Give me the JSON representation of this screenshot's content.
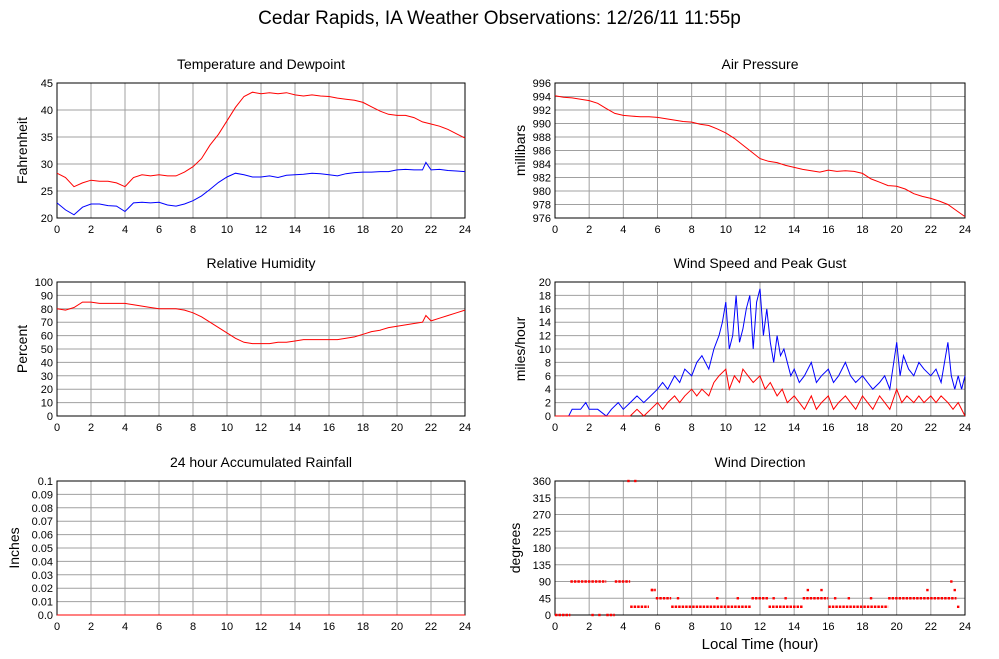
{
  "title": "Cedar Rapids, IA Weather Observations: 12/26/11 11:55p",
  "xlabel": "Local Time (hour)",
  "colors": {
    "red": "#ff0000",
    "blue": "#0000ff",
    "grid": "#a0a0a0"
  },
  "chart_data": [
    {
      "type": "line",
      "title": "Temperature and Dewpoint",
      "ylabel": "Fahrenheit",
      "xlim": [
        0,
        24
      ],
      "ylim": [
        20,
        45
      ],
      "xticks": [
        0,
        2,
        4,
        6,
        8,
        10,
        12,
        14,
        16,
        18,
        20,
        22,
        24
      ],
      "yticks": [
        20,
        25,
        30,
        35,
        40,
        45
      ],
      "grid": true,
      "series": [
        {
          "color": "#ff0000",
          "x": [
            0,
            0.5,
            1.0,
            1.5,
            2.0,
            2.5,
            3.0,
            3.5,
            4.0,
            4.5,
            5.0,
            5.5,
            6.0,
            6.5,
            7.0,
            7.5,
            8.0,
            8.5,
            9.0,
            9.5,
            10.0,
            10.5,
            11.0,
            11.5,
            12.0,
            12.5,
            13.0,
            13.5,
            14.0,
            14.5,
            15.0,
            15.5,
            16.0,
            16.5,
            17.0,
            17.5,
            18.0,
            18.5,
            19.0,
            19.5,
            20.0,
            20.5,
            21.0,
            21.5,
            22.0,
            22.5,
            23.0,
            23.5,
            24.0
          ],
          "y": [
            28.3,
            27.5,
            25.8,
            26.5,
            27.0,
            26.8,
            26.8,
            26.5,
            25.8,
            27.5,
            28.0,
            27.8,
            28.0,
            27.8,
            27.8,
            28.5,
            29.5,
            31.0,
            33.5,
            35.5,
            38.0,
            40.5,
            42.5,
            43.3,
            43.0,
            43.2,
            43.0,
            43.2,
            42.8,
            42.6,
            42.8,
            42.6,
            42.5,
            42.2,
            42.0,
            41.8,
            41.4,
            40.6,
            39.8,
            39.2,
            39.0,
            39.0,
            38.6,
            37.8,
            37.4,
            37.0,
            36.4,
            35.6,
            34.8
          ]
        },
        {
          "color": "#0000ff",
          "x": [
            0,
            0.5,
            1.0,
            1.5,
            2.0,
            2.5,
            3.0,
            3.5,
            4.0,
            4.5,
            5.0,
            5.5,
            6.0,
            6.5,
            7.0,
            7.5,
            8.0,
            8.5,
            9.0,
            9.5,
            10.0,
            10.5,
            11.0,
            11.5,
            12.0,
            12.5,
            13.0,
            13.5,
            14.0,
            14.5,
            15.0,
            15.5,
            16.0,
            16.5,
            17.0,
            17.5,
            18.0,
            18.5,
            19.0,
            19.5,
            20.0,
            20.5,
            21.0,
            21.5,
            21.7,
            22.0,
            22.5,
            23.0,
            23.5,
            24.0
          ],
          "y": [
            22.8,
            21.5,
            20.6,
            22.0,
            22.6,
            22.6,
            22.3,
            22.2,
            21.2,
            22.8,
            22.9,
            22.8,
            22.9,
            22.4,
            22.2,
            22.6,
            23.2,
            24.1,
            25.3,
            26.6,
            27.6,
            28.3,
            28.0,
            27.6,
            27.6,
            27.8,
            27.5,
            27.9,
            28.0,
            28.1,
            28.3,
            28.2,
            28.0,
            27.8,
            28.2,
            28.4,
            28.5,
            28.5,
            28.6,
            28.6,
            28.9,
            29.0,
            28.9,
            28.9,
            30.3,
            28.9,
            29.0,
            28.8,
            28.7,
            28.6
          ]
        }
      ]
    },
    {
      "type": "line",
      "title": "Air Pressure",
      "ylabel": "millibars",
      "xlim": [
        0,
        24
      ],
      "ylim": [
        976,
        996
      ],
      "xticks": [
        0,
        2,
        4,
        6,
        8,
        10,
        12,
        14,
        16,
        18,
        20,
        22,
        24
      ],
      "yticks": [
        976,
        978,
        980,
        982,
        984,
        986,
        988,
        990,
        992,
        994,
        996
      ],
      "grid": true,
      "series": [
        {
          "color": "#ff0000",
          "x": [
            0,
            0.5,
            1.0,
            1.5,
            2.0,
            2.5,
            3.0,
            3.5,
            4.0,
            4.5,
            5.0,
            5.5,
            6.0,
            6.5,
            7.0,
            7.5,
            8.0,
            8.5,
            9.0,
            9.5,
            10.0,
            10.5,
            11.0,
            11.5,
            12.0,
            12.5,
            13.0,
            13.5,
            14.0,
            14.5,
            15.0,
            15.5,
            16.0,
            16.5,
            17.0,
            17.5,
            18.0,
            18.5,
            19.0,
            19.5,
            20.0,
            20.5,
            21.0,
            21.5,
            22.0,
            22.5,
            23.0,
            23.5,
            24.0
          ],
          "y": [
            994.1,
            993.9,
            993.8,
            993.6,
            993.4,
            993.0,
            992.2,
            991.5,
            991.2,
            991.1,
            991.0,
            991.0,
            990.9,
            990.7,
            990.5,
            990.3,
            990.2,
            989.9,
            989.7,
            989.2,
            988.6,
            987.8,
            986.8,
            985.8,
            984.8,
            984.4,
            984.2,
            983.8,
            983.5,
            983.2,
            983.0,
            982.8,
            983.1,
            982.9,
            983.0,
            982.9,
            982.6,
            981.8,
            981.3,
            980.8,
            980.7,
            980.3,
            979.6,
            979.2,
            978.9,
            978.5,
            978.0,
            977.1,
            976.2
          ]
        }
      ]
    },
    {
      "type": "line",
      "title": "Relative Humidity",
      "ylabel": "Percent",
      "xlim": [
        0,
        24
      ],
      "ylim": [
        0,
        100
      ],
      "xticks": [
        0,
        2,
        4,
        6,
        8,
        10,
        12,
        14,
        16,
        18,
        20,
        22,
        24
      ],
      "yticks": [
        0,
        10,
        20,
        30,
        40,
        50,
        60,
        70,
        80,
        90,
        100
      ],
      "grid": true,
      "series": [
        {
          "color": "#ff0000",
          "x": [
            0,
            0.5,
            1.0,
            1.5,
            2.0,
            2.5,
            3.0,
            3.5,
            4.0,
            4.5,
            5.0,
            5.5,
            6.0,
            6.5,
            7.0,
            7.5,
            8.0,
            8.5,
            9.0,
            9.5,
            10.0,
            10.5,
            11.0,
            11.5,
            12.0,
            12.5,
            13.0,
            13.5,
            14.0,
            14.5,
            15.0,
            15.5,
            16.0,
            16.5,
            17.0,
            17.5,
            18.0,
            18.5,
            19.0,
            19.5,
            20.0,
            20.5,
            21.0,
            21.5,
            21.7,
            22.0,
            22.5,
            23.0,
            23.5,
            24.0
          ],
          "y": [
            80,
            79,
            81,
            85,
            85,
            84,
            84,
            84,
            84,
            83,
            82,
            81,
            80,
            80,
            80,
            79,
            77,
            74,
            70,
            66,
            62,
            58,
            55,
            54,
            54,
            54,
            55,
            55,
            56,
            57,
            57,
            57,
            57,
            57,
            58,
            59,
            61,
            63,
            64,
            66,
            67,
            68,
            69,
            70,
            75,
            71,
            73,
            75,
            77,
            79
          ]
        }
      ]
    },
    {
      "type": "line",
      "title": "Wind Speed and Peak Gust",
      "ylabel": "miles/hour",
      "xlim": [
        0,
        24
      ],
      "ylim": [
        0,
        20
      ],
      "xticks": [
        0,
        2,
        4,
        6,
        8,
        10,
        12,
        14,
        16,
        18,
        20,
        22,
        24
      ],
      "yticks": [
        0,
        2,
        4,
        6,
        8,
        10,
        12,
        14,
        16,
        18,
        20
      ],
      "grid": true,
      "series": [
        {
          "color": "#0000ff",
          "x": [
            0,
            0.5,
            0.8,
            1.0,
            1.5,
            1.8,
            2.0,
            2.5,
            3.0,
            3.3,
            3.7,
            4.0,
            4.4,
            4.8,
            5.2,
            5.6,
            6.0,
            6.3,
            6.6,
            7.0,
            7.3,
            7.6,
            8.0,
            8.3,
            8.6,
            9.0,
            9.3,
            9.6,
            9.8,
            10.0,
            10.2,
            10.4,
            10.6,
            10.8,
            11.0,
            11.2,
            11.4,
            11.6,
            11.8,
            12.0,
            12.2,
            12.4,
            12.6,
            12.8,
            13.0,
            13.2,
            13.4,
            13.6,
            13.8,
            14.0,
            14.3,
            14.6,
            15.0,
            15.3,
            15.6,
            16.0,
            16.3,
            16.6,
            17.0,
            17.3,
            17.6,
            18.0,
            18.3,
            18.6,
            19.0,
            19.3,
            19.6,
            20.0,
            20.2,
            20.4,
            20.7,
            21.0,
            21.3,
            21.6,
            22.0,
            22.3,
            22.6,
            23.0,
            23.2,
            23.4,
            23.6,
            23.8,
            24.0
          ],
          "y": [
            0,
            0,
            0,
            1,
            1,
            2,
            1,
            1,
            0,
            1,
            2,
            1,
            2,
            3,
            2,
            3,
            4,
            5,
            4,
            6,
            5,
            7,
            6,
            8,
            9,
            7,
            10,
            12,
            14,
            17,
            10,
            12,
            18,
            11,
            13,
            16,
            18,
            10,
            17,
            19,
            12,
            16,
            11,
            8,
            12,
            9,
            10,
            8,
            6,
            7,
            5,
            6,
            8,
            5,
            6,
            7,
            5,
            6,
            8,
            6,
            5,
            6,
            5,
            4,
            5,
            6,
            4,
            11,
            6,
            9,
            7,
            6,
            8,
            7,
            6,
            7,
            5,
            11,
            6,
            4,
            6,
            4,
            6
          ]
        },
        {
          "color": "#ff0000",
          "x": [
            0,
            0.5,
            1.0,
            1.5,
            2.0,
            2.5,
            3.0,
            3.5,
            4.0,
            4.4,
            4.8,
            5.2,
            5.6,
            6.0,
            6.3,
            6.6,
            7.0,
            7.3,
            7.6,
            8.0,
            8.3,
            8.6,
            9.0,
            9.3,
            9.6,
            10.0,
            10.2,
            10.5,
            10.8,
            11.0,
            11.3,
            11.6,
            12.0,
            12.3,
            12.6,
            13.0,
            13.3,
            13.6,
            14.0,
            14.3,
            14.6,
            15.0,
            15.3,
            15.6,
            16.0,
            16.3,
            16.6,
            17.0,
            17.3,
            17.6,
            18.0,
            18.3,
            18.6,
            19.0,
            19.3,
            19.6,
            20.0,
            20.3,
            20.6,
            21.0,
            21.3,
            21.6,
            22.0,
            22.3,
            22.6,
            23.0,
            23.3,
            23.6,
            24.0
          ],
          "y": [
            0,
            0,
            0,
            0,
            0,
            0,
            0,
            0,
            0,
            0,
            1,
            0,
            1,
            2,
            1,
            2,
            3,
            2,
            3,
            4,
            3,
            4,
            3,
            5,
            6,
            7,
            4,
            6,
            5,
            7,
            6,
            5,
            6,
            4,
            5,
            3,
            4,
            2,
            3,
            2,
            1,
            3,
            1,
            2,
            3,
            1,
            2,
            3,
            2,
            1,
            3,
            2,
            1,
            3,
            2,
            1,
            4,
            2,
            3,
            2,
            3,
            2,
            3,
            2,
            3,
            2,
            1,
            2,
            0
          ]
        }
      ]
    },
    {
      "type": "line",
      "title": "24 hour Accumulated Rainfall",
      "ylabel": "Inches",
      "xlim": [
        0,
        24
      ],
      "ylim": [
        0,
        0.1
      ],
      "xticks": [
        0,
        2,
        4,
        6,
        8,
        10,
        12,
        14,
        16,
        18,
        20,
        22,
        24
      ],
      "yticks": [
        0.0,
        0.01,
        0.02,
        0.03,
        0.04,
        0.05,
        0.06,
        0.07,
        0.08,
        0.09,
        0.1
      ],
      "ytick_labels": [
        "0.0",
        "0.01",
        "0.02",
        "0.03",
        "0.04",
        "0.05",
        "0.06",
        "0.07",
        "0.08",
        "0.09",
        "0.1"
      ],
      "grid": true,
      "series": [
        {
          "color": "#ff0000",
          "x": [
            0,
            24
          ],
          "y": [
            0,
            0
          ]
        }
      ]
    },
    {
      "type": "scatter",
      "title": "Wind Direction",
      "ylabel": "degrees",
      "xlim": [
        0,
        24
      ],
      "ylim": [
        0,
        360
      ],
      "xticks": [
        0,
        2,
        4,
        6,
        8,
        10,
        12,
        14,
        16,
        18,
        20,
        22,
        24
      ],
      "yticks": [
        0,
        45,
        90,
        135,
        180,
        225,
        270,
        315,
        360
      ],
      "grid": true,
      "segments": [
        {
          "y": 0,
          "x0": 0.0,
          "x1": 0.9
        },
        {
          "y": 90,
          "x0": 0.9,
          "x1": 3.0
        },
        {
          "y": 0,
          "x0": 3.0,
          "x1": 3.5
        },
        {
          "y": 90,
          "x0": 3.5,
          "x1": 4.4
        },
        {
          "y": 22,
          "x0": 4.4,
          "x1": 5.5
        },
        {
          "y": 67,
          "x0": 5.6,
          "x1": 5.9
        },
        {
          "y": 45,
          "x0": 5.9,
          "x1": 6.8
        },
        {
          "y": 22,
          "x0": 6.8,
          "x1": 11.5
        },
        {
          "y": 45,
          "x0": 11.5,
          "x1": 12.5
        },
        {
          "y": 22,
          "x0": 12.5,
          "x1": 14.5
        },
        {
          "y": 45,
          "x0": 14.5,
          "x1": 16.0
        },
        {
          "y": 22,
          "x0": 16.0,
          "x1": 19.5
        },
        {
          "y": 45,
          "x0": 19.5,
          "x1": 23.5
        }
      ],
      "points": [
        {
          "x": 4.3,
          "y": 360
        },
        {
          "x": 4.7,
          "y": 360
        },
        {
          "x": 2.2,
          "y": 0
        },
        {
          "x": 2.6,
          "y": 0
        },
        {
          "x": 5.7,
          "y": 67
        },
        {
          "x": 7.2,
          "y": 45
        },
        {
          "x": 9.5,
          "y": 45
        },
        {
          "x": 10.7,
          "y": 45
        },
        {
          "x": 12.8,
          "y": 45
        },
        {
          "x": 13.5,
          "y": 45
        },
        {
          "x": 14.8,
          "y": 67
        },
        {
          "x": 15.6,
          "y": 67
        },
        {
          "x": 16.4,
          "y": 45
        },
        {
          "x": 17.2,
          "y": 45
        },
        {
          "x": 18.5,
          "y": 45
        },
        {
          "x": 21.8,
          "y": 67
        },
        {
          "x": 23.2,
          "y": 90
        },
        {
          "x": 23.4,
          "y": 67
        },
        {
          "x": 23.6,
          "y": 22
        }
      ]
    }
  ]
}
